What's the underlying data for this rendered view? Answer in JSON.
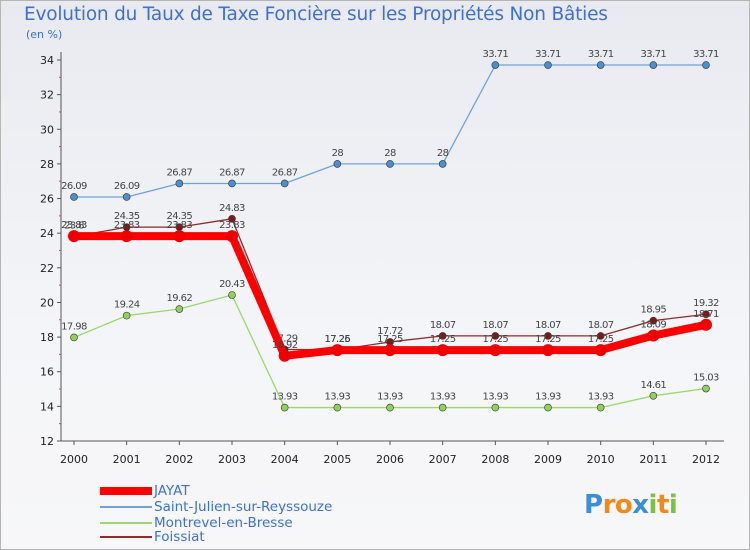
{
  "chart_data": {
    "type": "line",
    "title": "Evolution du Taux de Taxe Foncière sur les Propriétés Non Bâties",
    "subtitle": "(en %)",
    "x": [
      "2000",
      "2001",
      "2002",
      "2003",
      "2004",
      "2005",
      "2006",
      "2007",
      "2008",
      "2009",
      "2010",
      "2011",
      "2012"
    ],
    "ylim": [
      12,
      34
    ],
    "yticks": [
      12,
      14,
      16,
      18,
      20,
      22,
      24,
      26,
      28,
      30,
      32,
      34
    ],
    "grid": false,
    "legend_position": "bottom-left",
    "series": [
      {
        "name": "Saint-Julien-sur-Reyssouze",
        "color": "#6fa3d8",
        "marker": "#4b8fd0",
        "width": 1.3,
        "values": [
          26.09,
          26.09,
          26.87,
          26.87,
          26.87,
          28,
          28,
          28,
          33.71,
          33.71,
          33.71,
          33.71,
          33.71
        ],
        "labels": [
          "26.09",
          "26.09",
          "26.87",
          "26.87",
          "26.87",
          "28",
          "28",
          "28",
          "33.71",
          "33.71",
          "33.71",
          "33.71",
          "33.71"
        ]
      },
      {
        "name": "Montrevel-en-Bresse",
        "color": "#9ad86b",
        "marker": "#8fd15a",
        "width": 1.3,
        "values": [
          17.98,
          19.24,
          19.62,
          20.43,
          13.93,
          13.93,
          13.93,
          13.93,
          13.93,
          13.93,
          13.93,
          14.61,
          15.03
        ],
        "labels": [
          "17.98",
          "19.24",
          "19.62",
          "20.43",
          "13.93",
          "13.93",
          "13.93",
          "13.93",
          "13.93",
          "13.93",
          "13.93",
          "14.61",
          "15.03"
        ]
      },
      {
        "name": "Foissiat",
        "color": "#8e2b2b",
        "marker": "#7a1a1a",
        "width": 1.3,
        "values": [
          23.8,
          24.35,
          24.35,
          24.83,
          17.29,
          17.26,
          17.72,
          18.07,
          18.07,
          18.07,
          18.07,
          18.95,
          19.32
        ],
        "labels": [
          "23.8",
          "24.35",
          "24.35",
          "24.83",
          "17.29",
          "17.26",
          "17.72",
          "18.07",
          "18.07",
          "18.07",
          "18.07",
          "18.95",
          "19.32"
        ]
      },
      {
        "name": "JAYAT",
        "color": "#ff0000",
        "marker": "#ee0000",
        "width": 8,
        "values": [
          23.83,
          23.83,
          23.83,
          23.83,
          16.92,
          17.25,
          17.25,
          17.25,
          17.25,
          17.25,
          17.25,
          18.09,
          18.71
        ],
        "labels": [
          "23.83",
          "23.83",
          "23.83",
          "23.83",
          "16.92",
          "17.25",
          "17.25",
          "17.25",
          "17.25",
          "17.25",
          "17.25",
          "18.09",
          "18.71"
        ]
      }
    ]
  },
  "legend": [
    {
      "name": "JAYAT",
      "color": "#ff0000",
      "thickness": 8
    },
    {
      "name": "Saint-Julien-sur-Reyssouze",
      "color": "#6fa3d8",
      "thickness": 2
    },
    {
      "name": "Montrevel-en-Bresse",
      "color": "#9ad86b",
      "thickness": 2
    },
    {
      "name": "Foissiat",
      "color": "#8e2b2b",
      "thickness": 2
    }
  ],
  "logo": {
    "text": "Proxiti",
    "letters": [
      {
        "ch": "P",
        "color": "#3b8ed8"
      },
      {
        "ch": "r",
        "color": "#f08a1c"
      },
      {
        "ch": "o",
        "color": "#f08a1c"
      },
      {
        "ch": "x",
        "color": "#3b8ed8"
      },
      {
        "ch": "i",
        "color": "#7cc242"
      },
      {
        "ch": "t",
        "color": "#f08a1c"
      },
      {
        "ch": "i",
        "color": "#7cc242"
      }
    ]
  }
}
